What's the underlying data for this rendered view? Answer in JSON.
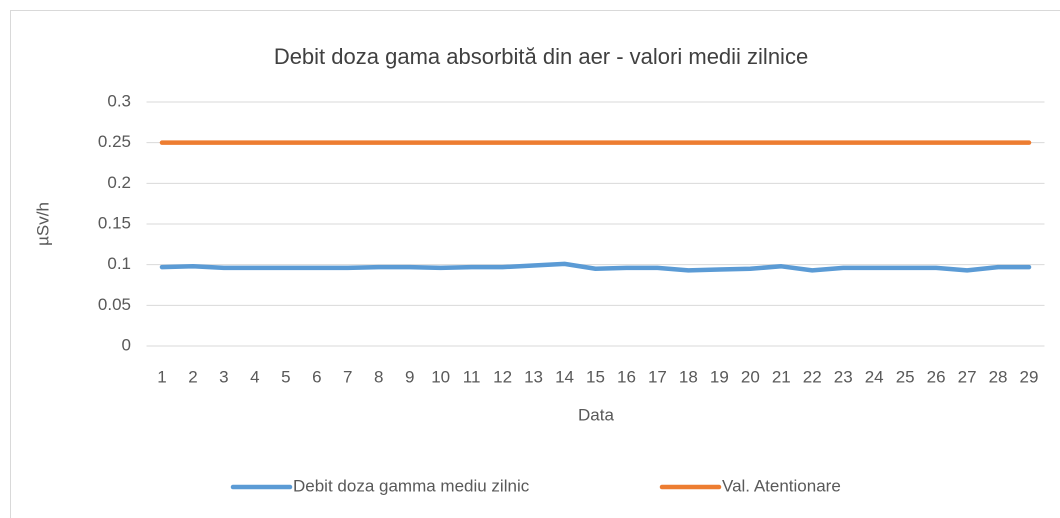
{
  "chart_data": {
    "type": "line",
    "title": "Debit doza gama absorbită din aer - valori medii zilnice",
    "x_label": "Data",
    "y_label": "µSv/h",
    "categories": [
      "1",
      "2",
      "3",
      "4",
      "5",
      "6",
      "7",
      "8",
      "9",
      "10",
      "11",
      "12",
      "13",
      "14",
      "15",
      "16",
      "17",
      "18",
      "19",
      "20",
      "21",
      "22",
      "23",
      "24",
      "25",
      "26",
      "27",
      "28",
      "29"
    ],
    "series": [
      {
        "name": "Debit doza gamma mediu zilnic",
        "color": "#5b9bd5",
        "values": [
          0.097,
          0.098,
          0.096,
          0.096,
          0.096,
          0.096,
          0.096,
          0.097,
          0.097,
          0.096,
          0.097,
          0.097,
          0.099,
          0.101,
          0.095,
          0.096,
          0.096,
          0.093,
          0.094,
          0.095,
          0.098,
          0.093,
          0.096,
          0.096,
          0.096,
          0.096,
          0.093,
          0.097,
          0.097
        ]
      },
      {
        "name": "Val. Atentionare",
        "color": "#ed7d31",
        "values": [
          0.25,
          0.25,
          0.25,
          0.25,
          0.25,
          0.25,
          0.25,
          0.25,
          0.25,
          0.25,
          0.25,
          0.25,
          0.25,
          0.25,
          0.25,
          0.25,
          0.25,
          0.25,
          0.25,
          0.25,
          0.25,
          0.25,
          0.25,
          0.25,
          0.25,
          0.25,
          0.25,
          0.25,
          0.25
        ]
      }
    ],
    "ylim": [
      0,
      0.3
    ],
    "yticks": [
      0,
      0.05,
      0.1,
      0.15,
      0.2,
      0.25,
      0.3
    ],
    "grid": true,
    "legend": "bottom"
  }
}
